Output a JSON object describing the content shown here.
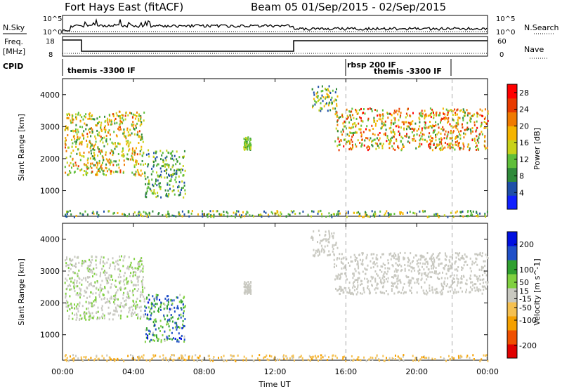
{
  "header": {
    "title_left": "Fort Hays East (fitACF)",
    "title_right": "Beam 05  01/Sep/2015 - 02/Sep/2015"
  },
  "noise_panel": {
    "label_left": "N.Sky",
    "label_right": "N.Search",
    "left_ticks": [
      "10^5",
      "10^0"
    ],
    "right_ticks": [
      "10^5",
      "10^0"
    ]
  },
  "freq_panel": {
    "label_left_1": "Freq.",
    "label_left_2": "[MHz]",
    "label_right": "Nave",
    "left_ticks": [
      "18",
      "8"
    ],
    "right_ticks": [
      "60",
      "0"
    ]
  },
  "cpid": {
    "label": "CPID",
    "segments": [
      {
        "text": "themis -3300 IF"
      },
      {
        "text": "rbsp 200 IF"
      },
      {
        "text": "themis -3300 IF"
      }
    ]
  },
  "x_axis": {
    "title": "Time UT",
    "ticks": [
      "00:00",
      "04:00",
      "08:00",
      "12:00",
      "16:00",
      "20:00",
      "00:00"
    ]
  },
  "chart_data": [
    {
      "type": "heatmap",
      "title": "",
      "xlabel": "",
      "ylabel": "Slant Range [km]",
      "x_range_hours": [
        0,
        24
      ],
      "ylim": [
        200,
        4500
      ],
      "y_ticks": [
        1000,
        2000,
        3000,
        4000
      ],
      "colorbar": {
        "label": "Power [dB]",
        "ticks": [
          4,
          8,
          12,
          16,
          20,
          24,
          28
        ],
        "range": [
          0,
          30
        ]
      },
      "echo_regions": [
        {
          "t": [
            0.1,
            4.6
          ],
          "range_km": [
            1500,
            3500
          ],
          "power_db": [
            8,
            24
          ]
        },
        {
          "t": [
            4.6,
            6.9
          ],
          "range_km": [
            800,
            2300
          ],
          "power_db": [
            4,
            16
          ]
        },
        {
          "t": [
            10.2,
            10.6
          ],
          "range_km": [
            2300,
            2700
          ],
          "power_db": [
            8,
            16
          ]
        },
        {
          "t": [
            14.0,
            15.5
          ],
          "range_km": [
            3500,
            4300
          ],
          "power_db": [
            4,
            20
          ]
        },
        {
          "t": [
            15.3,
            24.0
          ],
          "range_km": [
            2300,
            3600
          ],
          "power_db": [
            8,
            28
          ]
        },
        {
          "t": [
            0.0,
            24.0
          ],
          "range_km": [
            200,
            400
          ],
          "power_db": [
            4,
            20
          ]
        }
      ]
    },
    {
      "type": "heatmap",
      "title": "",
      "xlabel": "Time UT",
      "ylabel": "Slant Range [km]",
      "x_range_hours": [
        0,
        24
      ],
      "ylim": [
        200,
        4500
      ],
      "y_ticks": [
        1000,
        2000,
        3000,
        4000
      ],
      "colorbar": {
        "label": "Velocity [m s^-1]",
        "ticks": [
          200,
          100,
          50,
          15,
          -15,
          -50,
          -100,
          -200
        ],
        "range": [
          -250,
          250
        ]
      },
      "echo_regions": [
        {
          "t": [
            0.1,
            4.6
          ],
          "range_km": [
            1500,
            3500
          ],
          "velocity": [
            -15,
            50
          ]
        },
        {
          "t": [
            4.6,
            6.9
          ],
          "range_km": [
            800,
            2300
          ],
          "velocity": [
            15,
            200
          ]
        },
        {
          "t": [
            10.2,
            10.6
          ],
          "range_km": [
            2300,
            2700
          ],
          "velocity": [
            -15,
            15
          ]
        },
        {
          "t": [
            14.0,
            15.5
          ],
          "range_km": [
            3500,
            4300
          ],
          "velocity": [
            -15,
            15
          ]
        },
        {
          "t": [
            15.3,
            24.0
          ],
          "range_km": [
            2300,
            3600
          ],
          "velocity": [
            -15,
            15
          ]
        },
        {
          "t": [
            0.0,
            24.0
          ],
          "range_km": [
            200,
            400
          ],
          "velocity": [
            -100,
            -15
          ]
        }
      ]
    }
  ],
  "colors": {
    "power_scale": [
      "#1020ff",
      "#1e4fa8",
      "#2f8a3a",
      "#5fbf3a",
      "#c8d21a",
      "#f5b400",
      "#f07a00",
      "#e83a00",
      "#ff0000"
    ],
    "velocity_scale": [
      "#e00000",
      "#f05000",
      "#f5a000",
      "#f5c050",
      "#c8c8c0",
      "#80d040",
      "#30a030",
      "#2050c8",
      "#0010e0"
    ]
  }
}
